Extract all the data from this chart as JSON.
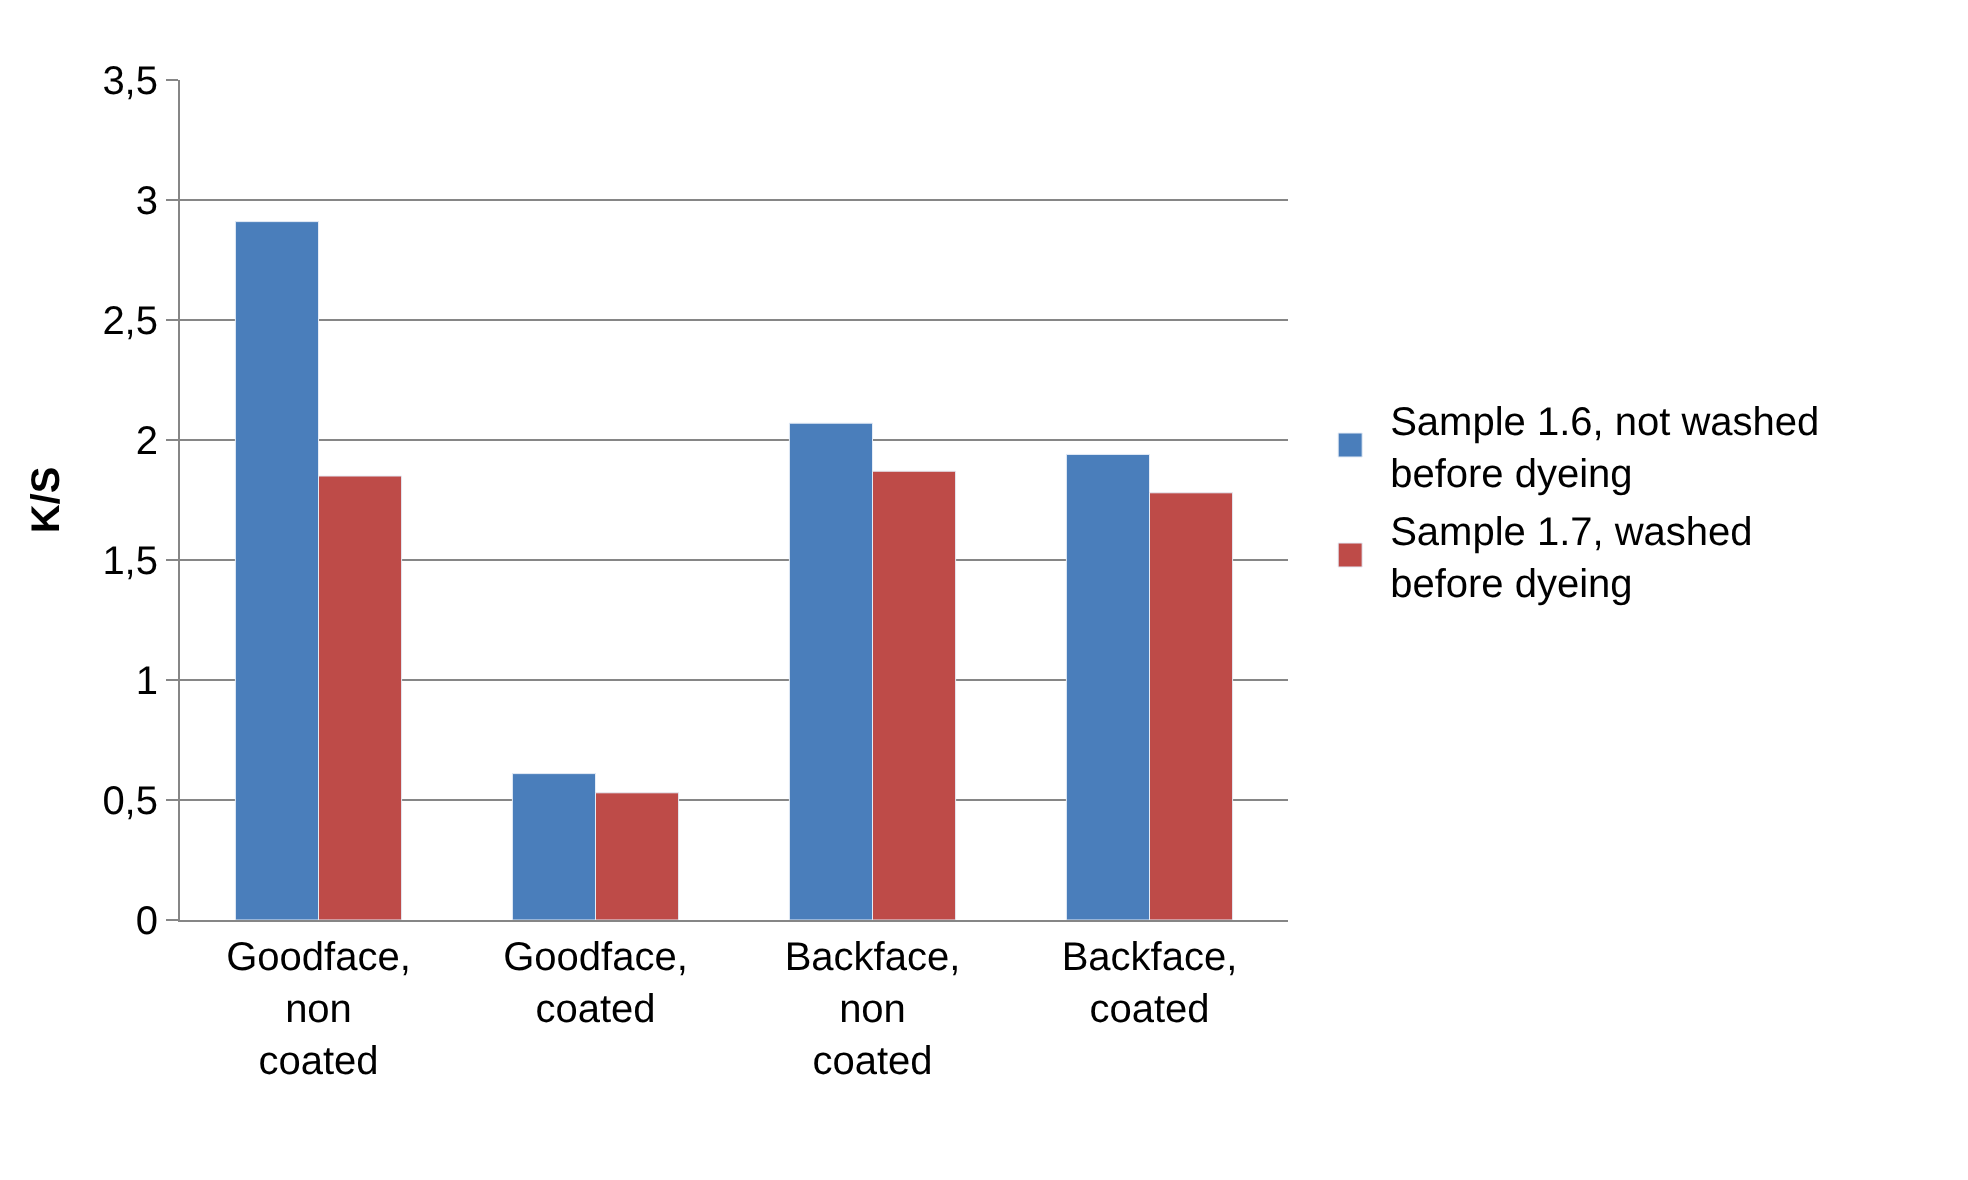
{
  "chart_data": {
    "type": "bar",
    "ylabel": "K/S",
    "categories": [
      "Goodface, non coated",
      "Goodface, coated",
      "Backface, non coated",
      "Backface, coated"
    ],
    "series": [
      {
        "name": "Sample 1.6, not washed before dyeing",
        "color": "#4a7ebb",
        "values": [
          2.91,
          0.61,
          2.07,
          1.94
        ]
      },
      {
        "name": "Sample 1.7, washed before dyeing",
        "color": "#be4b48",
        "values": [
          1.85,
          0.53,
          1.87,
          1.78
        ]
      }
    ],
    "ylim": [
      0,
      3.5
    ],
    "yticks": [
      0,
      {
        "value": 0.5,
        "label": "0,5"
      },
      1,
      {
        "value": 1.5,
        "label": "1,5"
      },
      2,
      {
        "value": 2.5,
        "label": "2,5"
      },
      3,
      {
        "value": 3.5,
        "label": "3,5"
      }
    ],
    "grid": "y",
    "legend": "right"
  }
}
